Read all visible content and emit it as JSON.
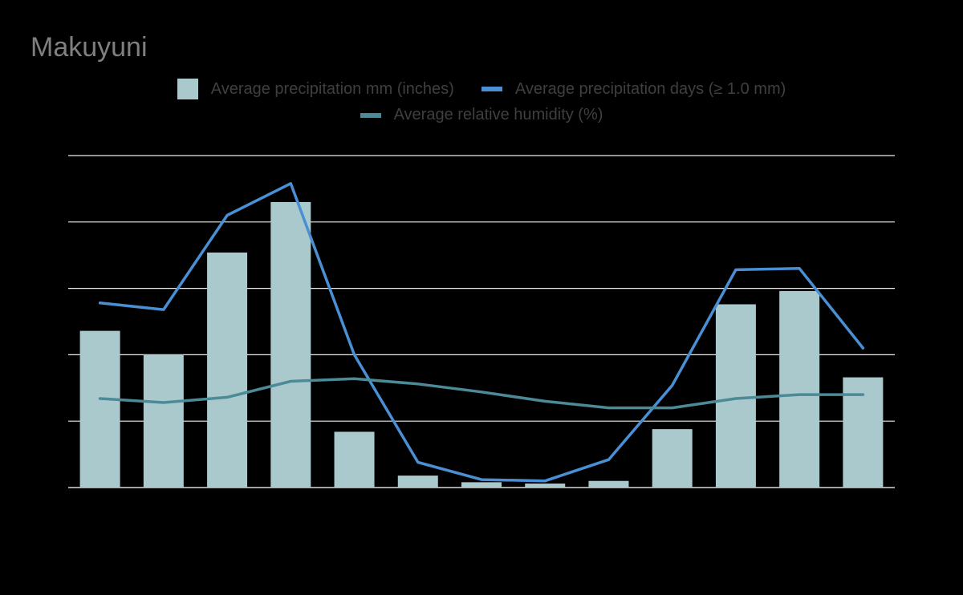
{
  "chart_data": {
    "type": "bar",
    "title": "Makuyuni",
    "xlabel": "",
    "ylabel": "",
    "ylim": [
      0,
      250
    ],
    "grid": true,
    "legend_position": "top",
    "series": [
      {
        "name": "Average precipitation mm (inches)",
        "type": "bar",
        "color": "#a9c9cc",
        "values": [
          118,
          100,
          177,
          215,
          42,
          9,
          4,
          3,
          5,
          44,
          138,
          148,
          83
        ]
      },
      {
        "name": "Average precipitation days (≥ 1.0 mm)",
        "type": "line",
        "color": "#4a8fd4",
        "values": [
          139,
          134,
          205,
          229,
          100,
          19,
          6,
          5,
          21,
          77,
          164,
          165,
          105
        ]
      },
      {
        "name": "Average relative humidity (%)",
        "type": "line",
        "color": "#4b8a96",
        "values": [
          67,
          64,
          68,
          80,
          82,
          78,
          72,
          65,
          60,
          60,
          67,
          70,
          70
        ]
      }
    ]
  }
}
